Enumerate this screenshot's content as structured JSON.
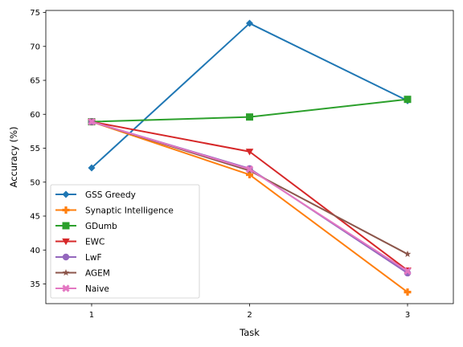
{
  "chart_data": {
    "type": "line",
    "title": "",
    "xlabel": "Task",
    "ylabel": "Accuracy (%)",
    "x": [
      1,
      2,
      3
    ],
    "xticks": [
      "1",
      "2",
      "3"
    ],
    "xlim": [
      0.71,
      3.29
    ],
    "ylim": [
      32.1,
      75.3
    ],
    "yticks": [
      35,
      40,
      45,
      50,
      55,
      60,
      65,
      70,
      75
    ],
    "grid": false,
    "legend_position": "lower-left",
    "series": [
      {
        "name": "GSS Greedy",
        "values": [
          52.1,
          73.4,
          62.0
        ],
        "color": "#1f77b4",
        "marker": "diamond"
      },
      {
        "name": "Synaptic Intelligence",
        "values": [
          58.9,
          51.1,
          33.8
        ],
        "color": "#ff7f0e",
        "marker": "plus"
      },
      {
        "name": "GDumb",
        "values": [
          58.9,
          59.6,
          62.2
        ],
        "color": "#2ca02c",
        "marker": "square"
      },
      {
        "name": "EWC",
        "values": [
          58.9,
          54.5,
          37.0
        ],
        "color": "#d62728",
        "marker": "triangle-down"
      },
      {
        "name": "LwF",
        "values": [
          58.9,
          52.0,
          36.6
        ],
        "color": "#9467bd",
        "marker": "circle"
      },
      {
        "name": "AGEM",
        "values": [
          58.9,
          51.7,
          39.4
        ],
        "color": "#8c564b",
        "marker": "star"
      },
      {
        "name": "Naive",
        "values": [
          58.9,
          51.9,
          36.9
        ],
        "color": "#e377c2",
        "marker": "x"
      }
    ]
  }
}
